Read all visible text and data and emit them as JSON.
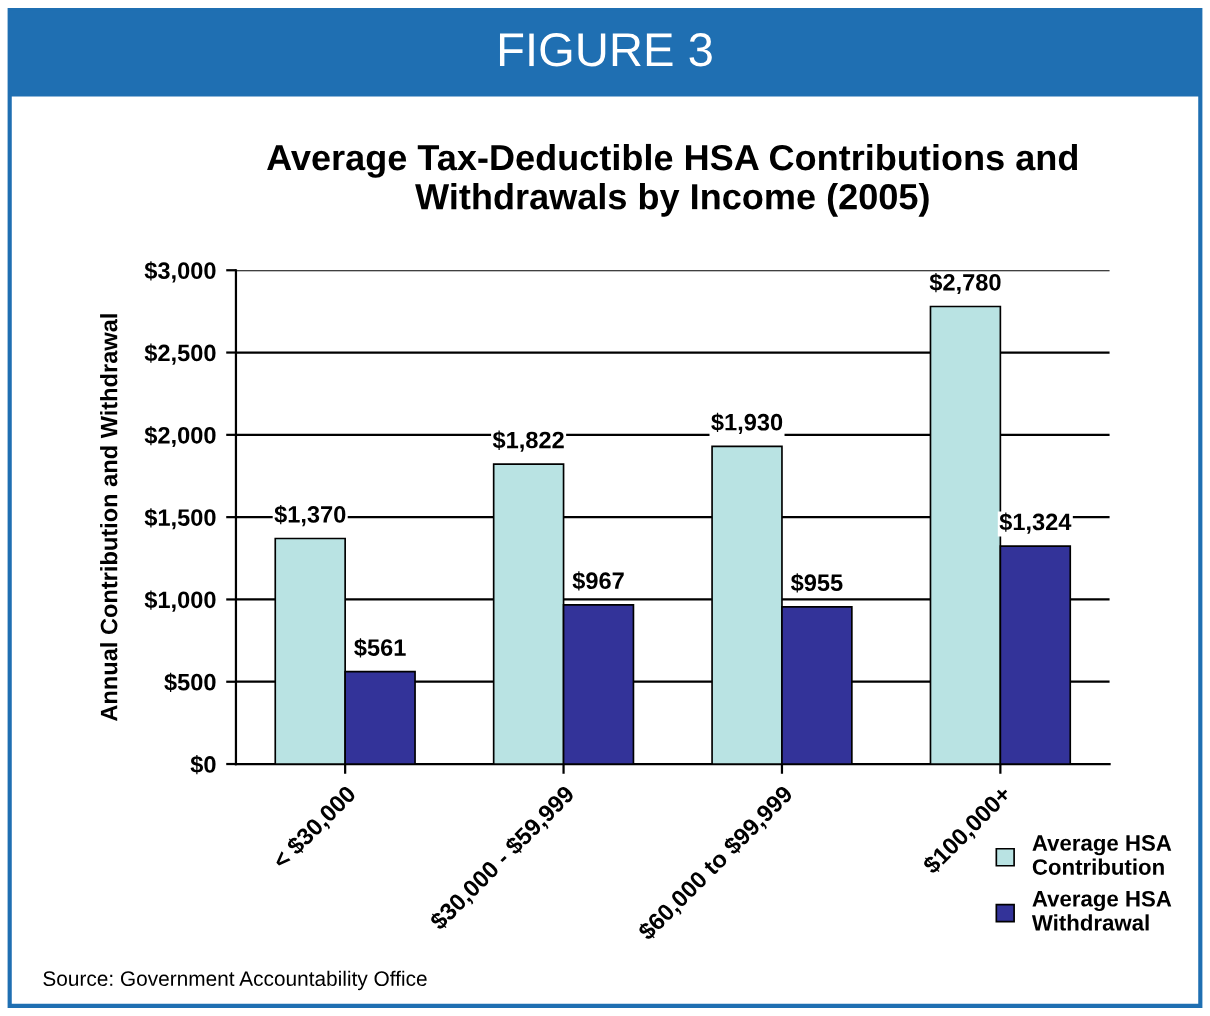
{
  "chart_data": {
    "type": "bar",
    "title": "Average Tax-Deductible HSA Contributions and\nWithdrawals by Income (2005)",
    "ylabel": "Annual Contribution and Withdrawal",
    "categories": [
      "< $30,000",
      "$30,000 - $59,999",
      "$60,000 to $99,999",
      "$100,000+"
    ],
    "series": [
      {
        "name": "Average HSA\nContribution",
        "color": "#b9e3e3",
        "values": [
          1370,
          1822,
          1930,
          2780
        ],
        "value_labels": [
          "$1,370",
          "$1,822",
          "$1,930",
          "$2,780"
        ]
      },
      {
        "name": "Average HSA\nWithdrawal",
        "color": "#333399",
        "values": [
          561,
          967,
          955,
          1324
        ],
        "value_labels": [
          "$561",
          "$967",
          "$955",
          "$1,324"
        ]
      }
    ],
    "ylim": [
      0,
      3000
    ],
    "yticks": [
      {
        "value": 0,
        "label": "$0"
      },
      {
        "value": 500,
        "label": "$500"
      },
      {
        "value": 1000,
        "label": "$1,000"
      },
      {
        "value": 1500,
        "label": "$1,500"
      },
      {
        "value": 2000,
        "label": "$2,000"
      },
      {
        "value": 2500,
        "label": "$2,500"
      },
      {
        "value": 3000,
        "label": "$3,000"
      }
    ],
    "grid": "y",
    "legend": "bottom right",
    "annotations": [
      "FIGURE 3",
      "Source: Government Accountability Office"
    ]
  }
}
